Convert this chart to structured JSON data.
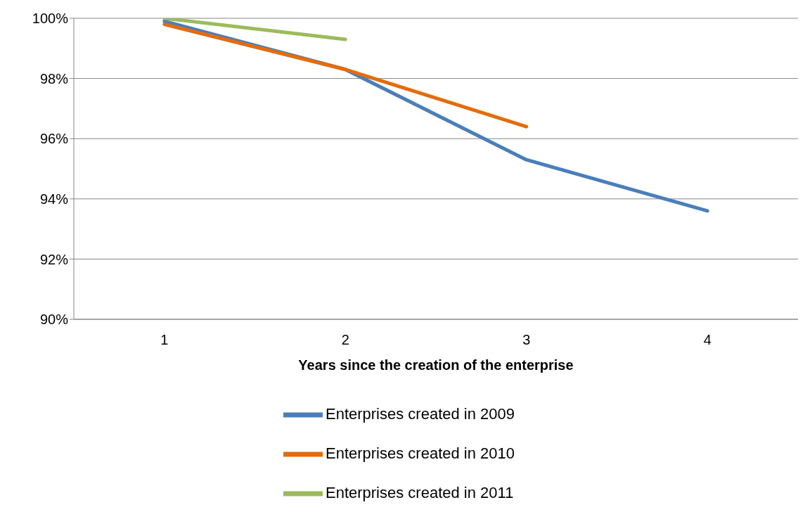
{
  "chart_data": {
    "type": "line",
    "xlabel": "Years since the creation of the enterprise",
    "categories": [
      "1",
      "2",
      "3",
      "4"
    ],
    "series": [
      {
        "name": "Enterprises created in 2009",
        "color": "#4a7ebb",
        "values": [
          99.9,
          98.3,
          95.3,
          93.6
        ]
      },
      {
        "name": "Enterprises created in 2010",
        "color": "#e46c0a",
        "values": [
          99.8,
          98.3,
          96.4,
          null
        ]
      },
      {
        "name": "Enterprises created in 2011",
        "color": "#9bbb59",
        "values": [
          100,
          99.3,
          null,
          null
        ]
      }
    ],
    "ylim": [
      90,
      100
    ],
    "yticks": [
      {
        "value": 90,
        "label": "90%"
      },
      {
        "value": 92,
        "label": "92%"
      },
      {
        "value": 94,
        "label": "94%"
      },
      {
        "value": 96,
        "label": "96%"
      },
      {
        "value": 98,
        "label": "98%"
      },
      {
        "value": 100,
        "label": "100%"
      }
    ],
    "grid": "y",
    "legend": "bottom",
    "marker": "none",
    "line_style": "solid"
  }
}
